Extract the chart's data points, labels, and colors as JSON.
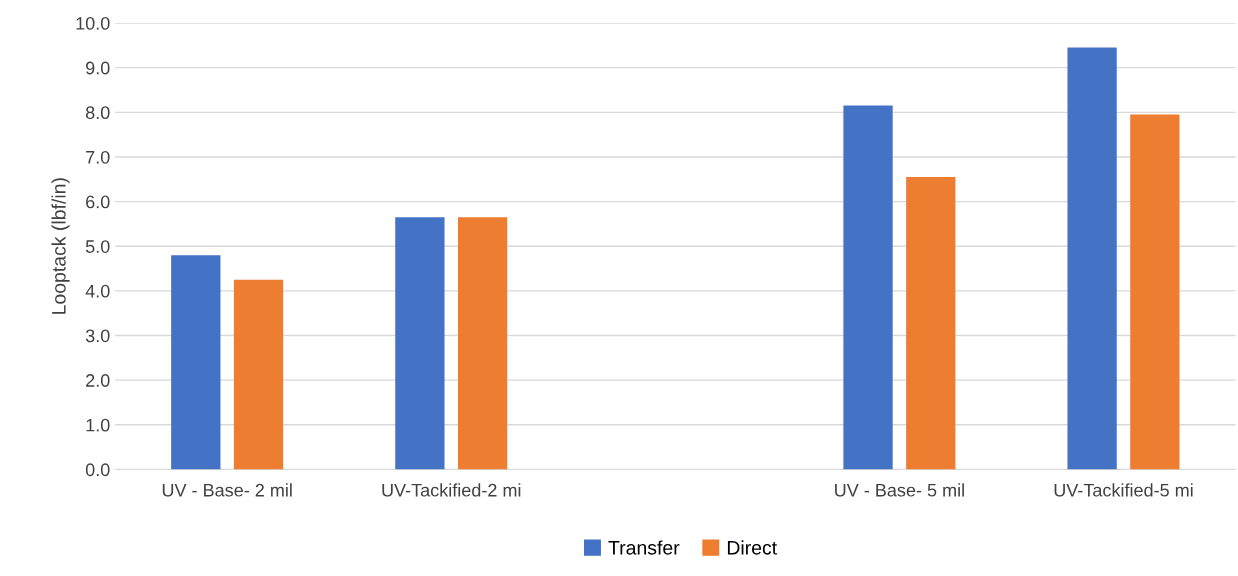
{
  "chart_data": {
    "type": "bar",
    "ylabel": "Looptack (lbf/in)",
    "categories": [
      "UV - Base- 2 mil",
      "UV-Tackified-2 mi",
      null,
      "UV - Base- 5 mil",
      "UV-Tackified-5 mi"
    ],
    "series": [
      {
        "name": "Transfer",
        "color": "#4472c4",
        "values": [
          4.8,
          5.65,
          null,
          8.15,
          9.45
        ]
      },
      {
        "name": "Direct",
        "color": "#ed7d31",
        "values": [
          4.25,
          5.65,
          null,
          6.55,
          7.95
        ]
      }
    ],
    "ylim": [
      0,
      10
    ],
    "yticks": [
      {
        "value": 0,
        "label": "0.0"
      },
      {
        "value": 1,
        "label": "1.0"
      },
      {
        "value": 2,
        "label": "2.0"
      },
      {
        "value": 3,
        "label": "3.0"
      },
      {
        "value": 4,
        "label": "4.0"
      },
      {
        "value": 5,
        "label": "5.0"
      },
      {
        "value": 6,
        "label": "6.0"
      },
      {
        "value": 7,
        "label": "7.0"
      },
      {
        "value": 8,
        "label": "8.0"
      },
      {
        "value": 9,
        "label": "9.0"
      },
      {
        "value": 10,
        "label": "10.0"
      }
    ],
    "grid": "y",
    "legend": "bottom"
  }
}
